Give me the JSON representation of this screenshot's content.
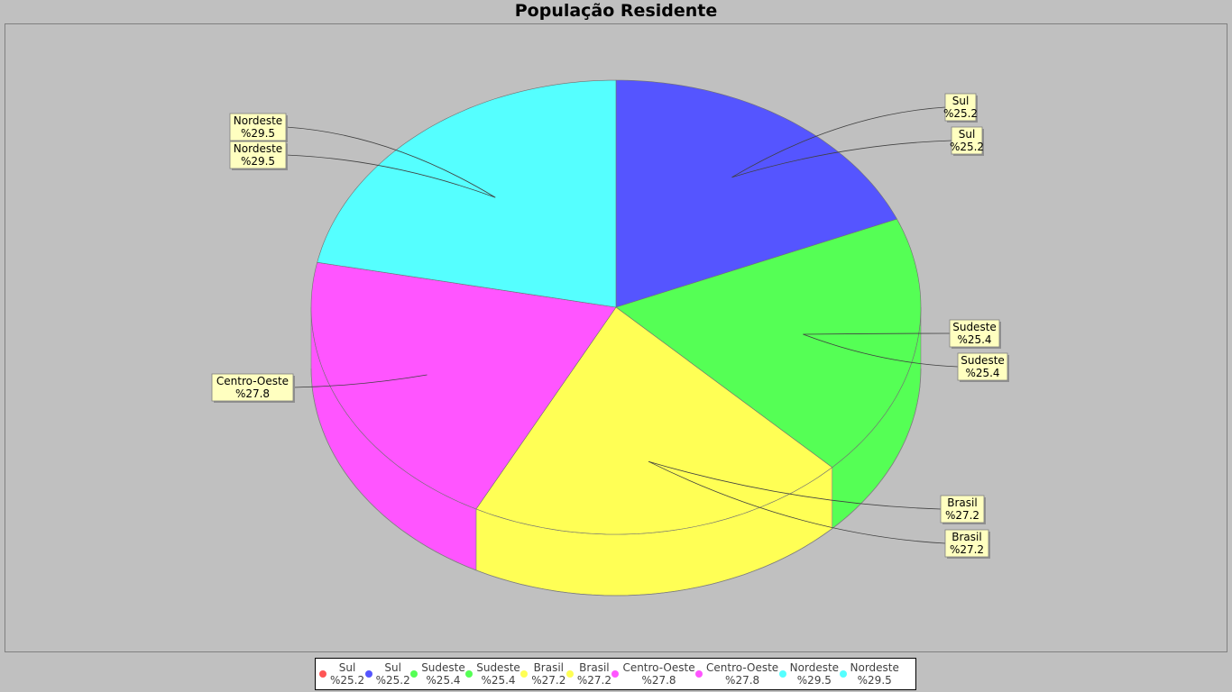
{
  "chart_data": {
    "type": "pie",
    "title": "População Residente",
    "style": "3d",
    "slices": [
      {
        "label": "Sul",
        "value": 25.2,
        "display": "%25.2",
        "color": "#5555ff"
      },
      {
        "label": "Sudeste",
        "value": 25.4,
        "display": "%25.4",
        "color": "#55ff55"
      },
      {
        "label": "Brasil",
        "value": 27.2,
        "display": "%27.2",
        "color": "#ffff55"
      },
      {
        "label": "Centro-Oeste",
        "value": 27.8,
        "display": "%27.8",
        "color": "#ff55ff"
      },
      {
        "label": "Nordeste",
        "value": 29.5,
        "display": "%29.5",
        "color": "#55ffff"
      }
    ],
    "legend_position": "bottom",
    "legend": [
      {
        "label": "Sul",
        "value": "%25.2",
        "color": "#ff5555"
      },
      {
        "label": "Sul",
        "value": "%25.2",
        "color": "#5555ff"
      },
      {
        "label": "Sudeste",
        "value": "%25.4",
        "color": "#55ff55"
      },
      {
        "label": "Sudeste",
        "value": "%25.4",
        "color": "#55ff55"
      },
      {
        "label": "Brasil",
        "value": "%27.2",
        "color": "#ffff55"
      },
      {
        "label": "Brasil",
        "value": "%27.2",
        "color": "#ffff55"
      },
      {
        "label": "Centro-Oeste",
        "value": "%27.8",
        "color": "#ff55ff"
      },
      {
        "label": "Centro-Oeste",
        "value": "%27.8",
        "color": "#ff55ff"
      },
      {
        "label": "Nordeste",
        "value": "%29.5",
        "color": "#55ffff"
      },
      {
        "label": "Nordeste",
        "value": "%29.5",
        "color": "#55ffff"
      }
    ],
    "callouts": [
      {
        "label": "Sul",
        "value": "%25.2",
        "slice": 0
      },
      {
        "label": "Sul",
        "value": "%25.2",
        "slice": 0
      },
      {
        "label": "Sudeste",
        "value": "%25.4",
        "slice": 1
      },
      {
        "label": "Sudeste",
        "value": "%25.4",
        "slice": 1
      },
      {
        "label": "Brasil",
        "value": "%27.2",
        "slice": 2
      },
      {
        "label": "Brasil",
        "value": "%27.2",
        "slice": 2
      },
      {
        "label": "Centro-Oeste",
        "value": "%27.8",
        "slice": 3
      },
      {
        "label": "Nordeste",
        "value": "%29.5",
        "slice": 4
      },
      {
        "label": "Nordeste",
        "value": "%29.5",
        "slice": 4
      }
    ]
  }
}
